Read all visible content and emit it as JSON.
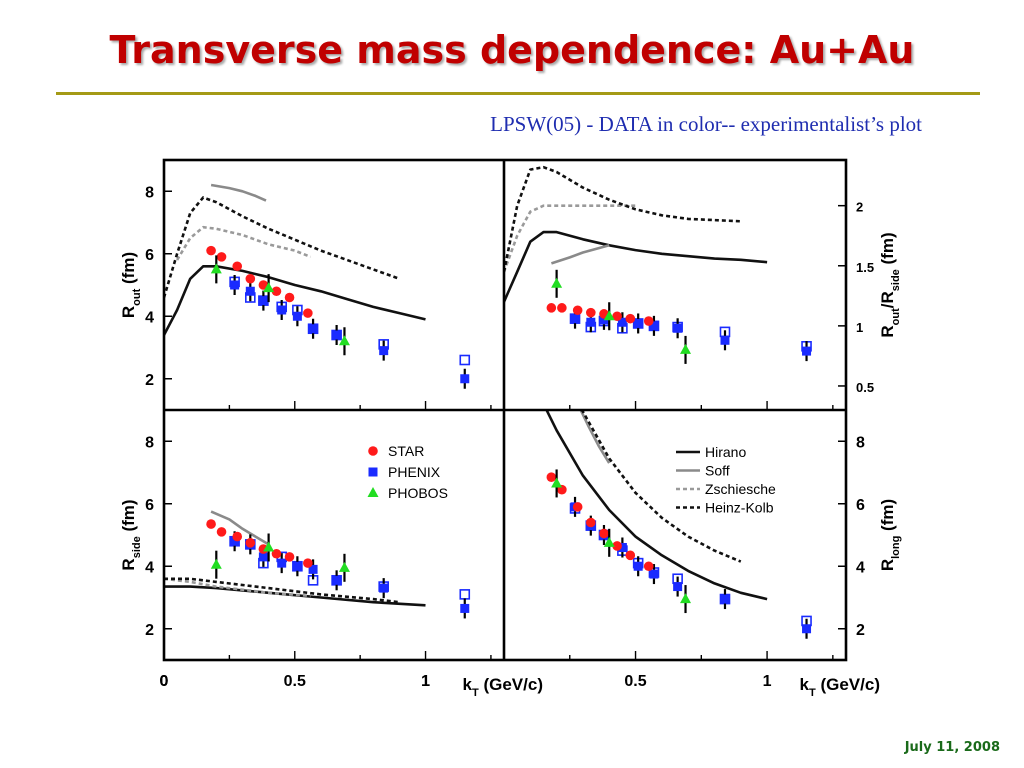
{
  "slide": {
    "title": "Transverse mass dependence: Au+Au",
    "subtitle": "LPSW(05) - DATA in color-- experimentalist’s plot",
    "date": "July 11, 2008"
  },
  "chart_data": [
    {
      "panel": "top-left",
      "type": "scatter",
      "ylabel": "R_out (fm)",
      "xlim": [
        0,
        1.3
      ],
      "ylim": [
        1,
        9
      ],
      "yticks": [
        2,
        4,
        6,
        8
      ],
      "series": [
        {
          "name": "STAR",
          "marker": "circle",
          "color": "#ff1a1a",
          "x": [
            0.18,
            0.22,
            0.28,
            0.33,
            0.38,
            0.43,
            0.48,
            0.55
          ],
          "y": [
            6.1,
            5.9,
            5.6,
            5.2,
            5.0,
            4.8,
            4.6,
            4.1
          ]
        },
        {
          "name": "PHENIX",
          "marker": "square",
          "color": "#1a2bff",
          "x": [
            0.27,
            0.33,
            0.38,
            0.45,
            0.51,
            0.57,
            0.66,
            0.84,
            1.15
          ],
          "y": [
            5.0,
            4.8,
            4.5,
            4.2,
            4.0,
            3.6,
            3.4,
            2.9,
            2.0
          ]
        },
        {
          "name": "PHENIX open",
          "marker": "open-square",
          "color": "#1a2bff",
          "x": [
            0.27,
            0.33,
            0.38,
            0.45,
            0.51,
            0.57,
            0.66,
            0.84,
            1.15
          ],
          "y": [
            5.1,
            4.6,
            4.5,
            4.3,
            4.2,
            3.6,
            3.4,
            3.1,
            2.6
          ]
        },
        {
          "name": "PHOBOS",
          "marker": "triangle",
          "color": "#22dd22",
          "x": [
            0.2,
            0.4,
            0.69
          ],
          "y": [
            5.5,
            4.9,
            3.2
          ]
        }
      ],
      "curves": [
        {
          "name": "Hirano",
          "style": "solid-black",
          "x": [
            0,
            0.05,
            0.1,
            0.15,
            0.2,
            0.3,
            0.4,
            0.5,
            0.6,
            0.7,
            0.8,
            0.9,
            1.0
          ],
          "y": [
            3.4,
            4.2,
            5.2,
            5.6,
            5.6,
            5.45,
            5.25,
            5.0,
            4.8,
            4.55,
            4.3,
            4.1,
            3.9
          ]
        },
        {
          "name": "Soff",
          "style": "solid-gray",
          "x": [
            0.18,
            0.25,
            0.3,
            0.35,
            0.39
          ],
          "y": [
            8.2,
            8.1,
            8.0,
            7.85,
            7.7
          ]
        },
        {
          "name": "Zschiesche",
          "style": "dash-gray",
          "x": [
            0.05,
            0.1,
            0.15,
            0.2,
            0.3,
            0.4,
            0.5,
            0.56
          ],
          "y": [
            5.8,
            6.5,
            6.85,
            6.8,
            6.6,
            6.3,
            6.1,
            5.9
          ]
        },
        {
          "name": "Heinz-Kolb",
          "style": "dash-black",
          "x": [
            0,
            0.05,
            0.1,
            0.15,
            0.2,
            0.3,
            0.4,
            0.5,
            0.6,
            0.7,
            0.8,
            0.9
          ],
          "y": [
            4.6,
            6.0,
            7.3,
            7.8,
            7.65,
            7.2,
            6.8,
            6.45,
            6.1,
            5.8,
            5.5,
            5.2
          ]
        }
      ]
    },
    {
      "panel": "top-right",
      "type": "scatter",
      "ylabel": "R_out/R_side (fm)",
      "xlim": [
        0,
        1.3
      ],
      "ylim": [
        0.3,
        2.38
      ],
      "yticks": [
        0.5,
        1,
        1.5,
        2
      ],
      "series": [
        {
          "name": "STAR",
          "marker": "circle",
          "color": "#ff1a1a",
          "x": [
            0.18,
            0.22,
            0.28,
            0.33,
            0.38,
            0.43,
            0.48,
            0.55
          ],
          "y": [
            1.15,
            1.15,
            1.13,
            1.11,
            1.1,
            1.08,
            1.06,
            1.04
          ]
        },
        {
          "name": "PHENIX",
          "marker": "square",
          "color": "#1a2bff",
          "x": [
            0.27,
            0.33,
            0.38,
            0.45,
            0.51,
            0.57,
            0.66,
            0.84,
            1.15
          ],
          "y": [
            1.06,
            1.03,
            1.05,
            1.03,
            1.02,
            1.0,
            0.98,
            0.88,
            0.79
          ]
        },
        {
          "name": "PHENIX open",
          "marker": "open-square",
          "color": "#1a2bff",
          "x": [
            0.27,
            0.33,
            0.38,
            0.45,
            0.51,
            0.57,
            0.66,
            0.84,
            1.15
          ],
          "y": [
            1.06,
            0.99,
            1.04,
            0.98,
            1.02,
            1.0,
            0.99,
            0.95,
            0.83
          ]
        },
        {
          "name": "PHOBOS",
          "marker": "triangle",
          "color": "#22dd22",
          "x": [
            0.2,
            0.4,
            0.69
          ],
          "y": [
            1.35,
            1.08,
            0.8
          ]
        }
      ],
      "curves": [
        {
          "name": "Hirano",
          "style": "solid-black",
          "x": [
            0,
            0.05,
            0.1,
            0.15,
            0.2,
            0.3,
            0.4,
            0.5,
            0.6,
            0.7,
            0.8,
            0.9,
            1.0
          ],
          "y": [
            1.2,
            1.45,
            1.7,
            1.78,
            1.78,
            1.72,
            1.67,
            1.63,
            1.6,
            1.58,
            1.56,
            1.55,
            1.53
          ]
        },
        {
          "name": "Soff",
          "style": "solid-gray",
          "x": [
            0.18,
            0.25,
            0.3,
            0.35,
            0.4
          ],
          "y": [
            1.52,
            1.57,
            1.61,
            1.64,
            1.67
          ]
        },
        {
          "name": "Zschiesche",
          "style": "dash-gray",
          "x": [
            0,
            0.05,
            0.1,
            0.15,
            0.2,
            0.3,
            0.4,
            0.5
          ],
          "y": [
            1.45,
            1.75,
            1.95,
            2.0,
            2.0,
            2.0,
            2.0,
            2.0
          ]
        },
        {
          "name": "Heinz-Kolb",
          "style": "dash-black",
          "x": [
            0,
            0.05,
            0.1,
            0.15,
            0.2,
            0.3,
            0.4,
            0.5,
            0.6,
            0.7,
            0.8,
            0.9
          ],
          "y": [
            1.45,
            2.0,
            2.3,
            2.32,
            2.28,
            2.15,
            2.05,
            1.97,
            1.92,
            1.89,
            1.88,
            1.87
          ]
        }
      ]
    },
    {
      "panel": "bottom-left",
      "type": "scatter",
      "ylabel": "R_side (fm)",
      "xlim": [
        0,
        1.3
      ],
      "ylim": [
        1,
        9
      ],
      "yticks": [
        2,
        4,
        6,
        8
      ],
      "xticks": [
        0,
        0.5,
        1
      ],
      "series": [
        {
          "name": "STAR",
          "marker": "circle",
          "color": "#ff1a1a",
          "x": [
            0.18,
            0.22,
            0.28,
            0.33,
            0.38,
            0.43,
            0.48,
            0.55
          ],
          "y": [
            5.35,
            5.1,
            4.95,
            4.75,
            4.55,
            4.4,
            4.3,
            4.1
          ]
        },
        {
          "name": "PHENIX",
          "marker": "square",
          "color": "#1a2bff",
          "x": [
            0.27,
            0.33,
            0.38,
            0.45,
            0.51,
            0.57,
            0.66,
            0.84,
            1.15
          ],
          "y": [
            4.8,
            4.7,
            4.3,
            4.1,
            4.0,
            3.9,
            3.55,
            3.3,
            2.65
          ]
        },
        {
          "name": "PHENIX open",
          "marker": "open-square",
          "color": "#1a2bff",
          "x": [
            0.27,
            0.33,
            0.38,
            0.45,
            0.51,
            0.57,
            0.66,
            0.84,
            1.15
          ],
          "y": [
            4.8,
            4.7,
            4.1,
            4.3,
            4.0,
            3.55,
            3.55,
            3.35,
            3.1
          ]
        },
        {
          "name": "PHOBOS",
          "marker": "triangle",
          "color": "#22dd22",
          "x": [
            0.2,
            0.4,
            0.69
          ],
          "y": [
            4.05,
            4.6,
            3.95
          ]
        }
      ],
      "curves": [
        {
          "name": "Hirano",
          "style": "solid-black",
          "x": [
            0,
            0.1,
            0.2,
            0.4,
            0.6,
            0.8,
            1.0
          ],
          "y": [
            3.35,
            3.35,
            3.3,
            3.15,
            3.0,
            2.85,
            2.75
          ]
        },
        {
          "name": "Soff",
          "style": "solid-gray",
          "x": [
            0.18,
            0.25,
            0.3,
            0.35,
            0.4
          ],
          "y": [
            5.75,
            5.5,
            5.2,
            4.95,
            4.7
          ]
        },
        {
          "name": "Zschiesche",
          "style": "dash-gray",
          "x": [
            0,
            0.1,
            0.2,
            0.3,
            0.4,
            0.56
          ],
          "y": [
            3.6,
            3.5,
            3.35,
            3.25,
            3.15,
            3.05
          ]
        },
        {
          "name": "Heinz-Kolb",
          "style": "dash-black",
          "x": [
            0,
            0.1,
            0.2,
            0.4,
            0.6,
            0.8,
            0.9
          ],
          "y": [
            3.6,
            3.6,
            3.5,
            3.3,
            3.1,
            2.95,
            2.85
          ]
        }
      ],
      "legend": {
        "position": "top-right",
        "entries": [
          {
            "label": "STAR",
            "marker": "circle",
            "color": "#ff1a1a"
          },
          {
            "label": "PHENIX",
            "marker": "square",
            "color": "#1a2bff"
          },
          {
            "label": "PHOBOS",
            "marker": "triangle",
            "color": "#22dd22"
          }
        ]
      }
    },
    {
      "panel": "bottom-right",
      "type": "scatter",
      "ylabel": "R_long (fm)",
      "xlim": [
        0,
        1.3
      ],
      "ylim": [
        1,
        9
      ],
      "yticks": [
        2,
        4,
        6,
        8
      ],
      "xticks": [
        0.5,
        1
      ],
      "xlabel": "k_T (GeV/c)",
      "series": [
        {
          "name": "STAR",
          "marker": "circle",
          "color": "#ff1a1a",
          "x": [
            0.18,
            0.22,
            0.28,
            0.33,
            0.38,
            0.43,
            0.48,
            0.55
          ],
          "y": [
            6.85,
            6.45,
            5.9,
            5.4,
            5.05,
            4.65,
            4.35,
            4.0
          ]
        },
        {
          "name": "PHENIX",
          "marker": "square",
          "color": "#1a2bff",
          "x": [
            0.27,
            0.33,
            0.38,
            0.45,
            0.51,
            0.57,
            0.66,
            0.84,
            1.15
          ],
          "y": [
            5.9,
            5.3,
            5.0,
            4.6,
            4.0,
            3.75,
            3.35,
            2.95,
            2.0
          ]
        },
        {
          "name": "PHENIX open",
          "marker": "open-square",
          "color": "#1a2bff",
          "x": [
            0.27,
            0.33,
            0.38,
            0.45,
            0.51,
            0.57,
            0.66,
            0.84,
            1.15
          ],
          "y": [
            5.85,
            5.3,
            5.0,
            4.5,
            4.1,
            3.8,
            3.6,
            2.95,
            2.25
          ]
        },
        {
          "name": "PHOBOS",
          "marker": "triangle",
          "color": "#22dd22",
          "x": [
            0.2,
            0.4,
            0.69
          ],
          "y": [
            6.65,
            4.75,
            2.95
          ]
        }
      ],
      "curves": [
        {
          "name": "Hirano",
          "style": "solid-black",
          "x": [
            0.15,
            0.2,
            0.3,
            0.4,
            0.5,
            0.6,
            0.7,
            0.8,
            0.9,
            1.0
          ],
          "y": [
            9.2,
            8.35,
            6.9,
            5.8,
            4.95,
            4.35,
            3.85,
            3.45,
            3.15,
            2.95
          ]
        },
        {
          "name": "Soff",
          "style": "solid-gray",
          "x": [
            0.28,
            0.32,
            0.36,
            0.4
          ],
          "y": [
            9.2,
            8.5,
            7.85,
            7.3
          ]
        },
        {
          "name": "Zschiesche",
          "style": "dash-gray",
          "x": [
            0.28,
            0.3,
            0.35,
            0.4
          ],
          "y": [
            9.2,
            8.9,
            8.1,
            7.4
          ]
        },
        {
          "name": "Heinz-Kolb",
          "style": "dash-black",
          "x": [
            0.28,
            0.3,
            0.4,
            0.5,
            0.6,
            0.7,
            0.8,
            0.9
          ],
          "y": [
            9.2,
            8.95,
            7.45,
            6.35,
            5.55,
            4.95,
            4.5,
            4.15
          ]
        }
      ],
      "legend": {
        "position": "top-right",
        "entries": [
          {
            "label": "Hirano",
            "style": "solid-black"
          },
          {
            "label": "Soff",
            "style": "solid-gray"
          },
          {
            "label": "Zschiesche",
            "style": "dash-gray"
          },
          {
            "label": "Heinz-Kolb",
            "style": "dash-black"
          }
        ]
      }
    }
  ]
}
